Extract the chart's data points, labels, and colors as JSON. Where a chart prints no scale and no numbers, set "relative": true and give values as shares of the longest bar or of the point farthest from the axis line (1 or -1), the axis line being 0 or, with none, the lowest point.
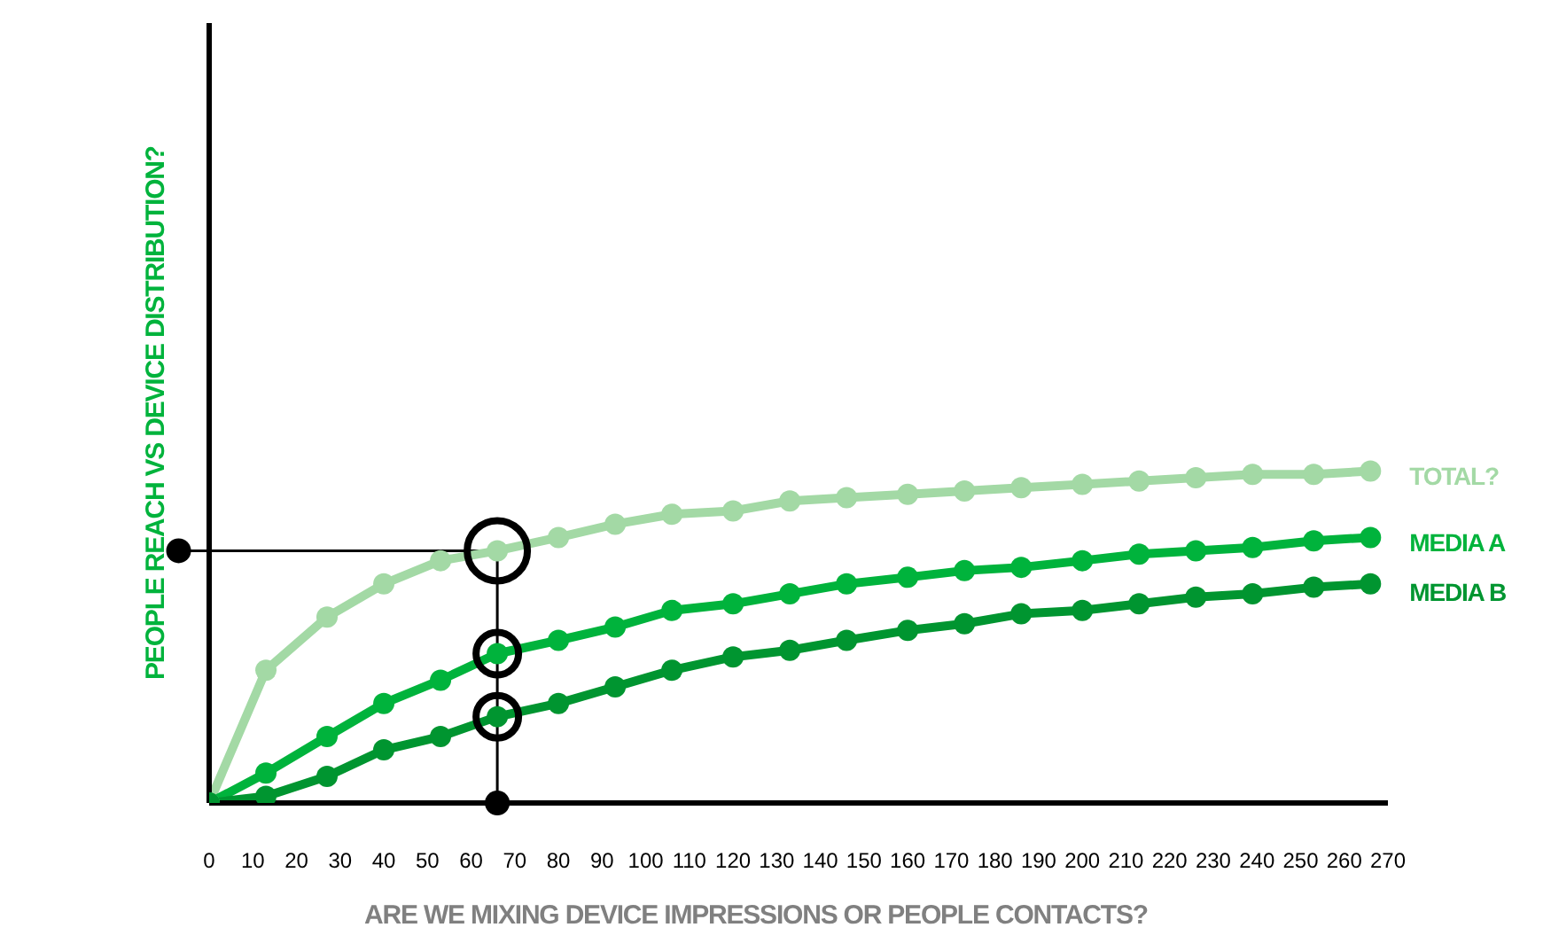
{
  "chart_data": {
    "type": "line",
    "xlabel": "ARE WE MIXING DEVICE IMPRESSIONS OR PEOPLE CONTACTS?",
    "ylabel": "PEOPLE REACH VS DEVICE DISTRIBUTION?",
    "relative": true,
    "x": [
      0,
      13,
      27,
      40,
      53,
      66,
      80,
      93,
      106,
      120,
      133,
      146,
      160,
      173,
      186,
      200,
      213,
      226,
      239,
      253,
      266
    ],
    "xlim": [
      0,
      270
    ],
    "xticks": [
      0,
      10,
      20,
      30,
      40,
      50,
      60,
      70,
      80,
      90,
      100,
      110,
      120,
      130,
      140,
      150,
      160,
      170,
      180,
      190,
      200,
      210,
      220,
      230,
      240,
      250,
      260,
      270
    ],
    "series": [
      {
        "name": "TOTAL?",
        "color": "#a3d9a5",
        "values": [
          0,
          0.4,
          0.56,
          0.66,
          0.73,
          0.76,
          0.8,
          0.84,
          0.87,
          0.88,
          0.91,
          0.92,
          0.93,
          0.94,
          0.95,
          0.96,
          0.97,
          0.98,
          0.99,
          0.99,
          1
        ]
      },
      {
        "name": "MEDIA A",
        "color": "#00b33c",
        "values": [
          0,
          0.09,
          0.2,
          0.3,
          0.37,
          0.45,
          0.49,
          0.53,
          0.58,
          0.6,
          0.63,
          0.66,
          0.68,
          0.7,
          0.71,
          0.73,
          0.75,
          0.76,
          0.77,
          0.79,
          0.8
        ]
      },
      {
        "name": "MEDIA B",
        "color": "#009530",
        "values": [
          0,
          0.02,
          0.08,
          0.16,
          0.2,
          0.26,
          0.3,
          0.35,
          0.4,
          0.44,
          0.46,
          0.49,
          0.52,
          0.54,
          0.57,
          0.58,
          0.6,
          0.62,
          0.63,
          0.65,
          0.66
        ]
      }
    ],
    "ref_lines": [
      {
        "axis": "x",
        "value": 66,
        "color": "#000000"
      },
      {
        "axis": "y",
        "value": 0.76,
        "color": "#000000"
      }
    ],
    "legend": false,
    "grid": false,
    "marker": "circle",
    "line_style": "solid"
  }
}
